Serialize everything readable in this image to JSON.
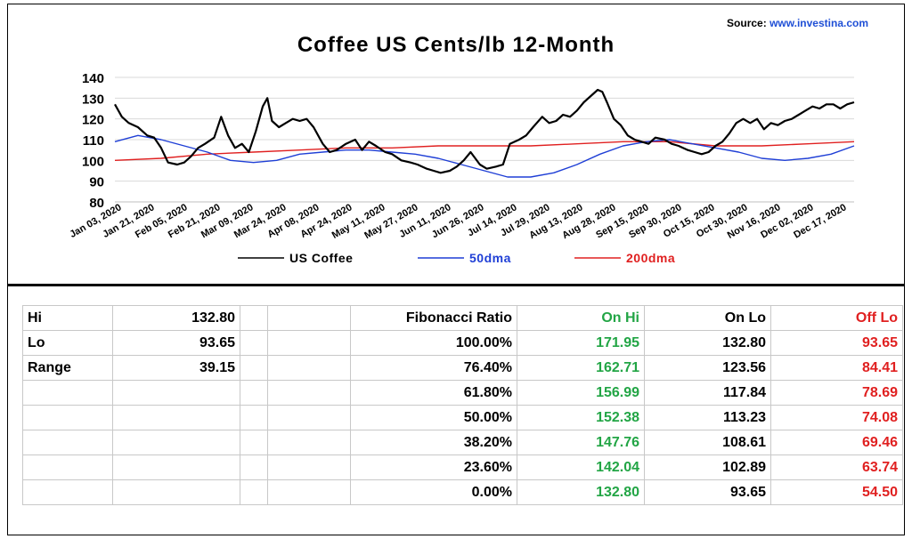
{
  "source": {
    "prefix": "Source:",
    "link": "www.investina.com"
  },
  "chart_data": {
    "type": "line",
    "title": "Coffee US Cents/lb 12-Month",
    "ylim": [
      80,
      140
    ],
    "yticks": [
      80,
      90,
      100,
      110,
      120,
      130,
      140
    ],
    "x_labels": [
      "Jan 03, 2020",
      "Jan 21, 2020",
      "Feb 05, 2020",
      "Feb 21, 2020",
      "Mar 09, 2020",
      "Mar 24, 2020",
      "Apr 08, 2020",
      "Apr 24, 2020",
      "May 11, 2020",
      "May 27, 2020",
      "Jun 11, 2020",
      "Jun 26, 2020",
      "Jul 14, 2020",
      "Jul 29, 2020",
      "Aug 13, 2020",
      "Aug 28, 2020",
      "Sep 15, 2020",
      "Sep 30, 2020",
      "Oct 15, 2020",
      "Oct 30, 2020",
      "Nov 16, 2020",
      "Dec 02, 2020",
      "Dec 17, 2020"
    ],
    "grid": "horizontal",
    "legend_position": "bottom",
    "series": [
      {
        "name": "US Coffee",
        "color": "#000000",
        "points": [
          [
            0,
            127
          ],
          [
            0.3,
            121
          ],
          [
            0.6,
            118
          ],
          [
            1,
            116
          ],
          [
            1.4,
            112
          ],
          [
            1.7,
            111
          ],
          [
            2,
            106
          ],
          [
            2.3,
            99
          ],
          [
            2.7,
            98
          ],
          [
            3,
            99
          ],
          [
            3.3,
            102
          ],
          [
            3.6,
            106
          ],
          [
            3.9,
            108
          ],
          [
            4.3,
            111
          ],
          [
            4.6,
            121
          ],
          [
            4.9,
            112
          ],
          [
            5.2,
            106
          ],
          [
            5.5,
            108
          ],
          [
            5.8,
            104
          ],
          [
            6.1,
            114
          ],
          [
            6.4,
            126
          ],
          [
            6.6,
            130
          ],
          [
            6.8,
            119
          ],
          [
            7.1,
            116
          ],
          [
            7.4,
            118
          ],
          [
            7.7,
            120
          ],
          [
            8,
            119
          ],
          [
            8.3,
            120
          ],
          [
            8.6,
            116
          ],
          [
            9,
            108
          ],
          [
            9.3,
            104
          ],
          [
            9.6,
            105
          ],
          [
            10,
            108
          ],
          [
            10.4,
            110
          ],
          [
            10.7,
            105
          ],
          [
            11,
            109
          ],
          [
            11.3,
            107
          ],
          [
            11.7,
            104
          ],
          [
            12,
            103
          ],
          [
            12.4,
            100
          ],
          [
            12.8,
            99
          ],
          [
            13.1,
            98
          ],
          [
            13.5,
            96
          ],
          [
            13.8,
            95
          ],
          [
            14.1,
            94
          ],
          [
            14.5,
            95
          ],
          [
            14.8,
            97
          ],
          [
            15.1,
            100
          ],
          [
            15.4,
            104
          ],
          [
            15.8,
            98
          ],
          [
            16.1,
            96
          ],
          [
            16.5,
            97
          ],
          [
            16.8,
            98
          ],
          [
            17.1,
            108
          ],
          [
            17.5,
            110
          ],
          [
            17.8,
            112
          ],
          [
            18.1,
            116
          ],
          [
            18.5,
            121
          ],
          [
            18.8,
            118
          ],
          [
            19.1,
            119
          ],
          [
            19.4,
            122
          ],
          [
            19.7,
            121
          ],
          [
            20,
            124
          ],
          [
            20.3,
            128
          ],
          [
            20.6,
            131
          ],
          [
            20.9,
            134
          ],
          [
            21.1,
            133
          ],
          [
            21.3,
            128
          ],
          [
            21.6,
            120
          ],
          [
            21.9,
            117
          ],
          [
            22.2,
            112
          ],
          [
            22.5,
            110
          ],
          [
            22.8,
            109
          ],
          [
            23.1,
            108
          ],
          [
            23.4,
            111
          ],
          [
            23.8,
            110
          ],
          [
            24.1,
            108
          ],
          [
            24.4,
            107
          ],
          [
            24.8,
            105
          ],
          [
            25.1,
            104
          ],
          [
            25.4,
            103
          ],
          [
            25.7,
            104
          ],
          [
            26,
            107
          ],
          [
            26.3,
            109
          ],
          [
            26.6,
            113
          ],
          [
            26.9,
            118
          ],
          [
            27.2,
            120
          ],
          [
            27.5,
            118
          ],
          [
            27.8,
            120
          ],
          [
            28.1,
            115
          ],
          [
            28.4,
            118
          ],
          [
            28.7,
            117
          ],
          [
            29,
            119
          ],
          [
            29.3,
            120
          ],
          [
            29.6,
            122
          ],
          [
            29.9,
            124
          ],
          [
            30.2,
            126
          ],
          [
            30.5,
            125
          ],
          [
            30.8,
            127
          ],
          [
            31.1,
            127
          ],
          [
            31.4,
            125
          ],
          [
            31.7,
            127
          ],
          [
            32,
            128
          ]
        ]
      },
      {
        "name": "50dma",
        "color": "#1f3fd6",
        "points": [
          [
            0,
            109
          ],
          [
            1,
            112
          ],
          [
            2,
            110
          ],
          [
            3,
            107
          ],
          [
            4,
            104
          ],
          [
            5,
            100
          ],
          [
            6,
            99
          ],
          [
            7,
            100
          ],
          [
            8,
            103
          ],
          [
            9,
            104
          ],
          [
            10,
            105
          ],
          [
            11,
            105
          ],
          [
            12,
            104
          ],
          [
            13,
            103
          ],
          [
            14,
            101
          ],
          [
            15,
            98
          ],
          [
            16,
            95
          ],
          [
            17,
            92
          ],
          [
            18,
            92
          ],
          [
            19,
            94
          ],
          [
            20,
            98
          ],
          [
            21,
            103
          ],
          [
            22,
            107
          ],
          [
            23,
            109
          ],
          [
            24,
            110
          ],
          [
            25,
            108
          ],
          [
            26,
            106
          ],
          [
            27,
            104
          ],
          [
            28,
            101
          ],
          [
            29,
            100
          ],
          [
            30,
            101
          ],
          [
            31,
            103
          ],
          [
            32,
            107
          ]
        ]
      },
      {
        "name": "200dma",
        "color": "#e02020",
        "points": [
          [
            0,
            100
          ],
          [
            2,
            101
          ],
          [
            4,
            103
          ],
          [
            6,
            104
          ],
          [
            8,
            105
          ],
          [
            10,
            106
          ],
          [
            12,
            106
          ],
          [
            14,
            107
          ],
          [
            16,
            107
          ],
          [
            18,
            107
          ],
          [
            20,
            108
          ],
          [
            22,
            109
          ],
          [
            24,
            109
          ],
          [
            26,
            107
          ],
          [
            28,
            107
          ],
          [
            30,
            108
          ],
          [
            32,
            109
          ]
        ]
      }
    ]
  },
  "table": {
    "stats": [
      {
        "label": "Hi",
        "value": "132.80"
      },
      {
        "label": "Lo",
        "value": "93.65"
      },
      {
        "label": "Range",
        "value": "39.15"
      }
    ],
    "headers": {
      "ratio": "Fibonacci  Ratio",
      "on_hi": "On Hi",
      "on_lo": "On Lo",
      "off_lo": "Off Lo"
    },
    "rows": [
      {
        "ratio": "100.00%",
        "on_hi": "171.95",
        "on_lo": "132.80",
        "off_lo": "93.65"
      },
      {
        "ratio": "76.40%",
        "on_hi": "162.71",
        "on_lo": "123.56",
        "off_lo": "84.41"
      },
      {
        "ratio": "61.80%",
        "on_hi": "156.99",
        "on_lo": "117.84",
        "off_lo": "78.69"
      },
      {
        "ratio": "50.00%",
        "on_hi": "152.38",
        "on_lo": "113.23",
        "off_lo": "74.08"
      },
      {
        "ratio": "38.20%",
        "on_hi": "147.76",
        "on_lo": "108.61",
        "off_lo": "69.46"
      },
      {
        "ratio": "23.60%",
        "on_hi": "142.04",
        "on_lo": "102.89",
        "off_lo": "63.74"
      },
      {
        "ratio": "0.00%",
        "on_hi": "132.80",
        "on_lo": "93.65",
        "off_lo": "54.50"
      }
    ]
  }
}
